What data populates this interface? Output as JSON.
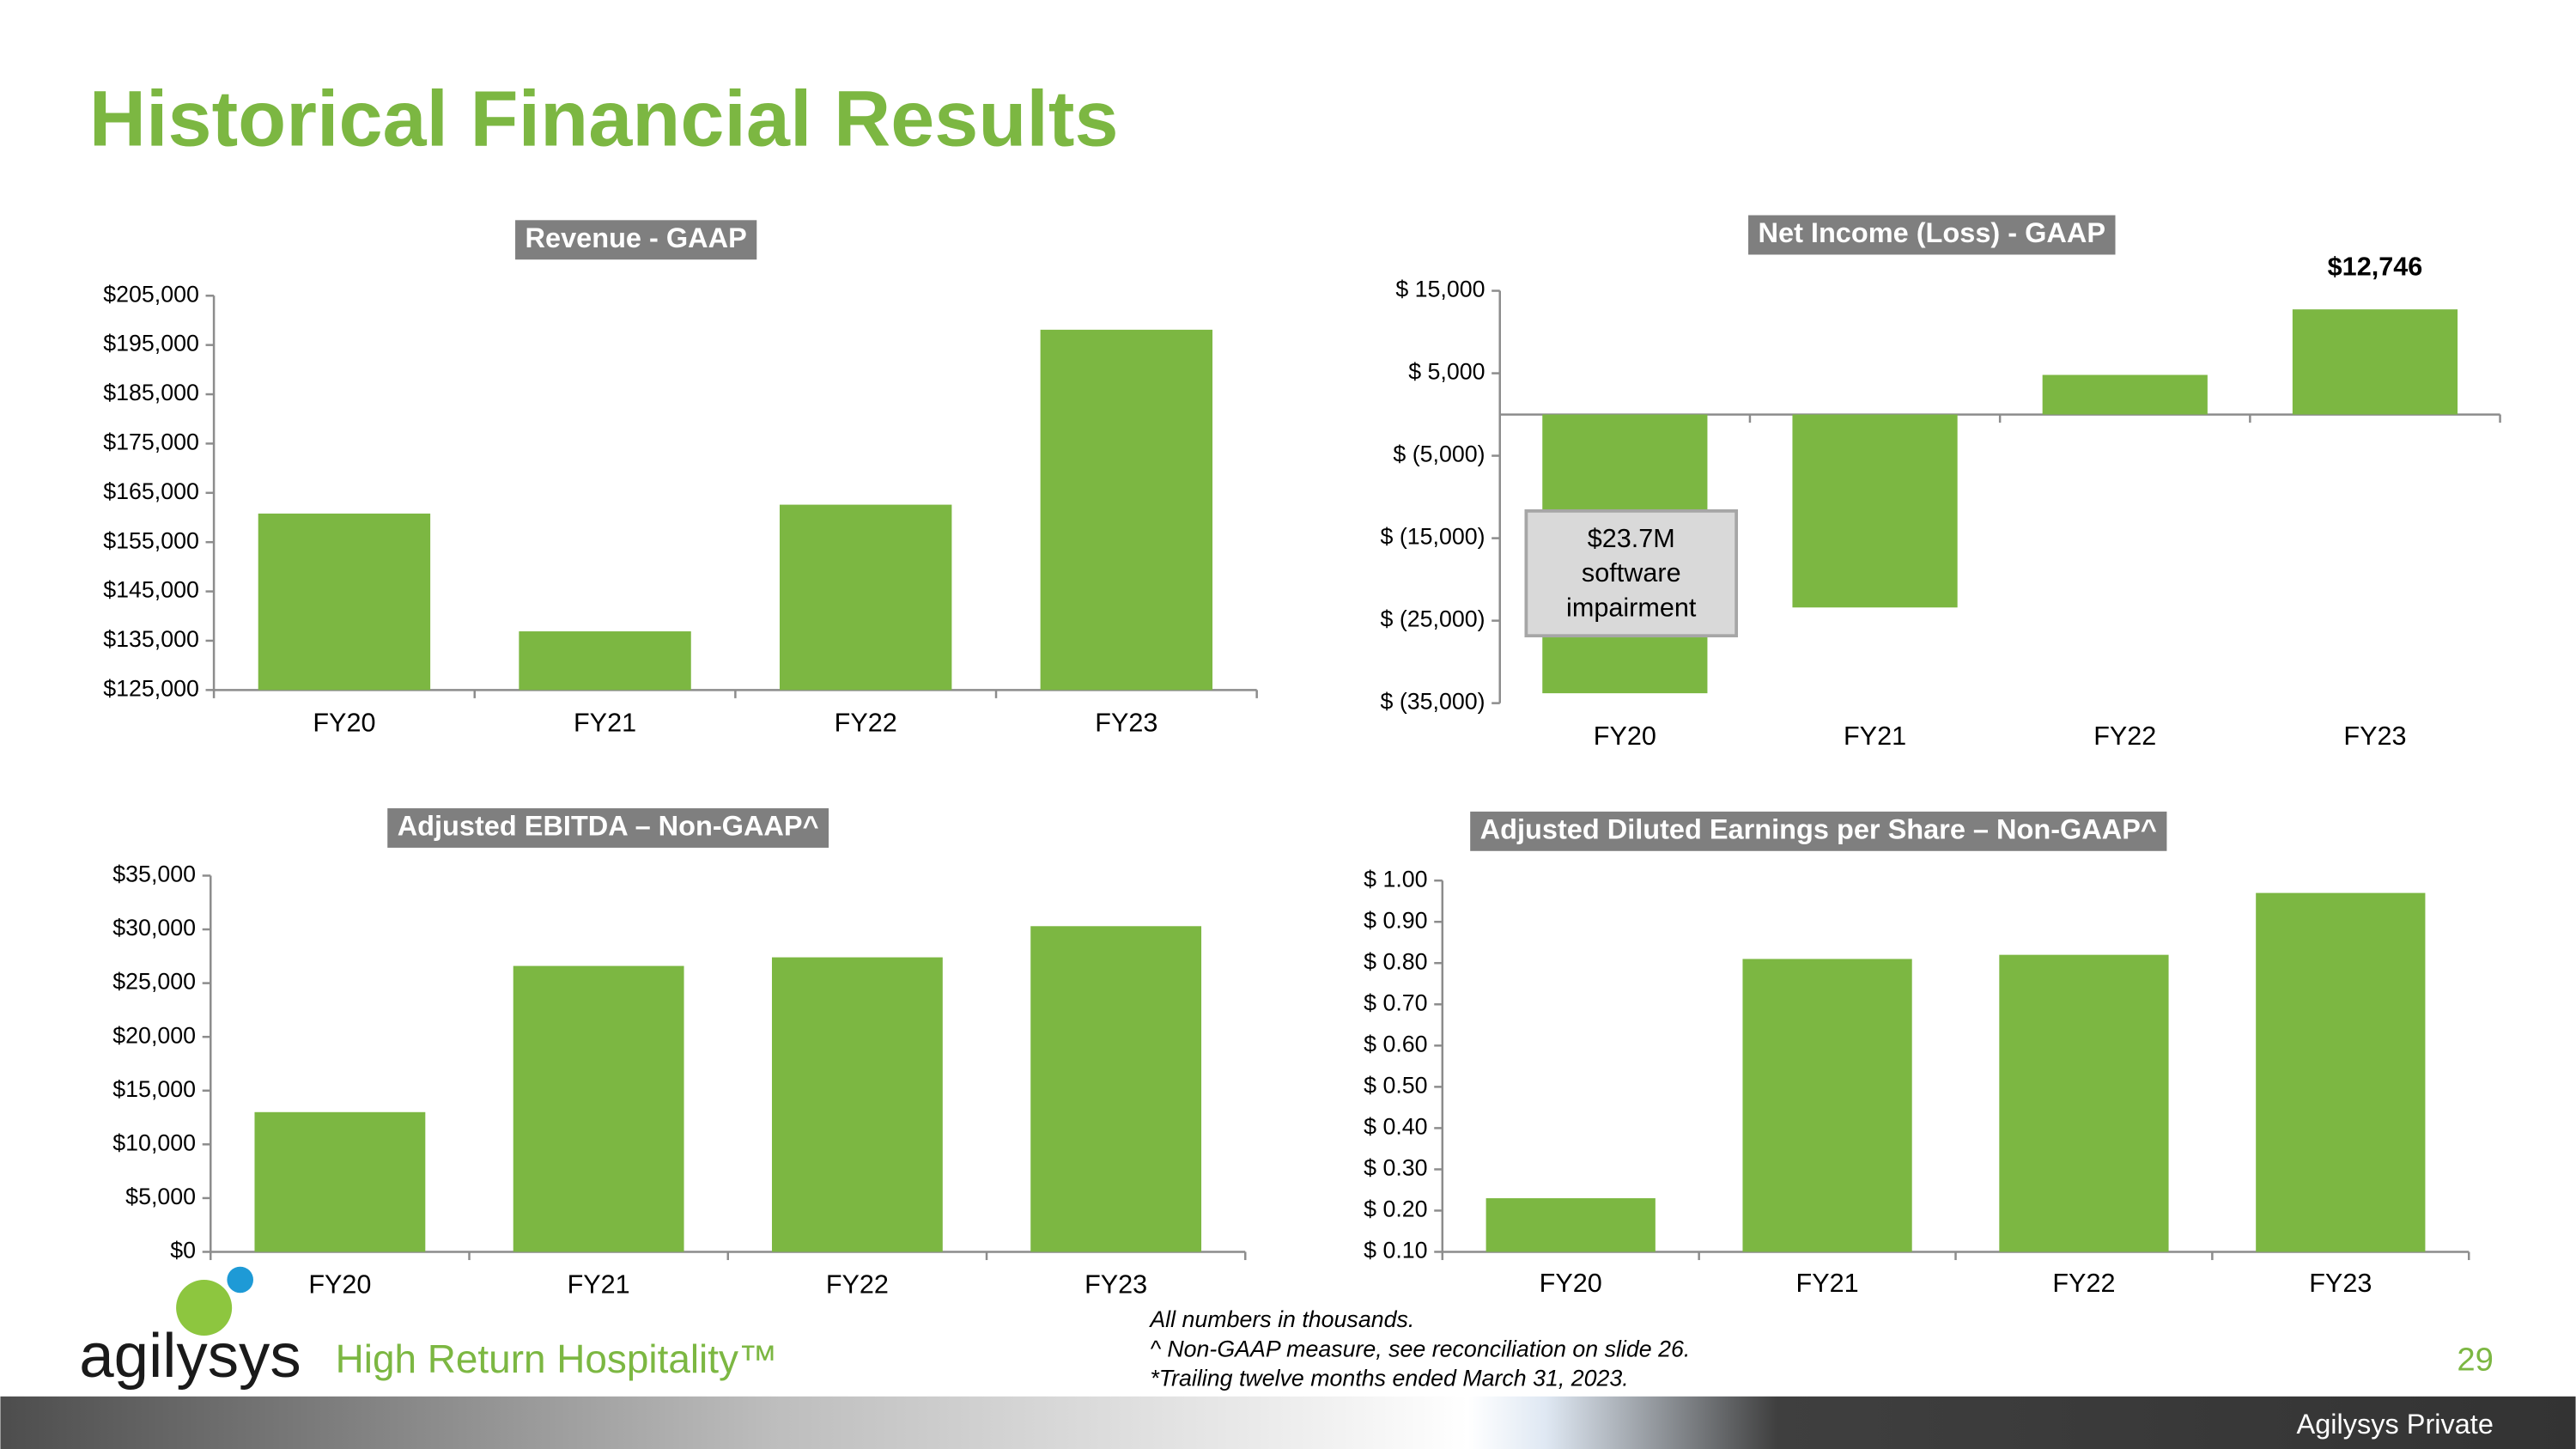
{
  "title": "Historical Financial Results",
  "chart_data": [
    {
      "type": "bar",
      "title": "Revenue - GAAP",
      "color": "#7cb742",
      "categories": [
        "FY20",
        "FY21",
        "FY22",
        "FY23"
      ],
      "values": [
        160800,
        136900,
        162600,
        198100
      ],
      "ylim": [
        125000,
        205000
      ],
      "yticks": [
        {
          "value": 125000,
          "label": "$125,000"
        },
        {
          "value": 135000,
          "label": "$135,000"
        },
        {
          "value": 145000,
          "label": "$145,000"
        },
        {
          "value": 155000,
          "label": "$155,000"
        },
        {
          "value": 165000,
          "label": "$165,000"
        },
        {
          "value": 175000,
          "label": "$175,000"
        },
        {
          "value": 185000,
          "label": "$185,000"
        },
        {
          "value": 195000,
          "label": "$195,000"
        },
        {
          "value": 205000,
          "label": "$205,000"
        }
      ]
    },
    {
      "type": "bar",
      "title": "Net Income (Loss) - GAAP",
      "color": "#7cb742",
      "categories": [
        "FY20",
        "FY21",
        "FY22",
        "FY23"
      ],
      "values": [
        -33800,
        -23400,
        4800,
        12746
      ],
      "value_labels": [
        null,
        null,
        null,
        "$12,746"
      ],
      "annotation": "$23.7M software impairment",
      "ylim": [
        -35000,
        15000
      ],
      "yticks": [
        {
          "value": -35000,
          "label": "$ (35,000)"
        },
        {
          "value": -25000,
          "label": "$ (25,000)"
        },
        {
          "value": -15000,
          "label": "$ (15,000)"
        },
        {
          "value": -5000,
          "label": "$ (5,000)"
        },
        {
          "value": 5000,
          "label": "$ 5,000"
        },
        {
          "value": 15000,
          "label": "$ 15,000"
        }
      ]
    },
    {
      "type": "bar",
      "title": "Adjusted EBITDA – Non-GAAP^",
      "color": "#7cb742",
      "categories": [
        "FY20",
        "FY21",
        "FY22",
        "FY23"
      ],
      "values": [
        13000,
        26600,
        27400,
        30300
      ],
      "ylim": [
        0,
        35000
      ],
      "yticks": [
        {
          "value": 0,
          "label": "$0"
        },
        {
          "value": 5000,
          "label": "$5,000"
        },
        {
          "value": 10000,
          "label": "$10,000"
        },
        {
          "value": 15000,
          "label": "$15,000"
        },
        {
          "value": 20000,
          "label": "$20,000"
        },
        {
          "value": 25000,
          "label": "$25,000"
        },
        {
          "value": 30000,
          "label": "$30,000"
        },
        {
          "value": 35000,
          "label": "$35,000"
        }
      ]
    },
    {
      "type": "bar",
      "title": "Adjusted Diluted Earnings per Share – Non-GAAP^",
      "color": "#7cb742",
      "categories": [
        "FY20",
        "FY21",
        "FY22",
        "FY23"
      ],
      "values": [
        0.23,
        0.81,
        0.82,
        0.97
      ],
      "ylim": [
        0.1,
        1.0
      ],
      "yticks": [
        {
          "value": 0.1,
          "label": "$ 0.10"
        },
        {
          "value": 0.2,
          "label": "$ 0.20"
        },
        {
          "value": 0.3,
          "label": "$ 0.30"
        },
        {
          "value": 0.4,
          "label": "$ 0.40"
        },
        {
          "value": 0.5,
          "label": "$ 0.50"
        },
        {
          "value": 0.6,
          "label": "$ 0.60"
        },
        {
          "value": 0.7,
          "label": "$ 0.70"
        },
        {
          "value": 0.8,
          "label": "$ 0.80"
        },
        {
          "value": 0.9,
          "label": "$ 0.90"
        },
        {
          "value": 1.0,
          "label": "$ 1.00"
        }
      ]
    }
  ],
  "notes": [
    "All numbers in thousands.",
    "^ Non-GAAP measure, see reconciliation on slide 26.",
    "*Trailing twelve months ended March 31, 2023."
  ],
  "logo": {
    "brand": "agilysys",
    "tagline": "High Return Hospitality™"
  },
  "page_number": "29",
  "footer": "Agilysys Private"
}
